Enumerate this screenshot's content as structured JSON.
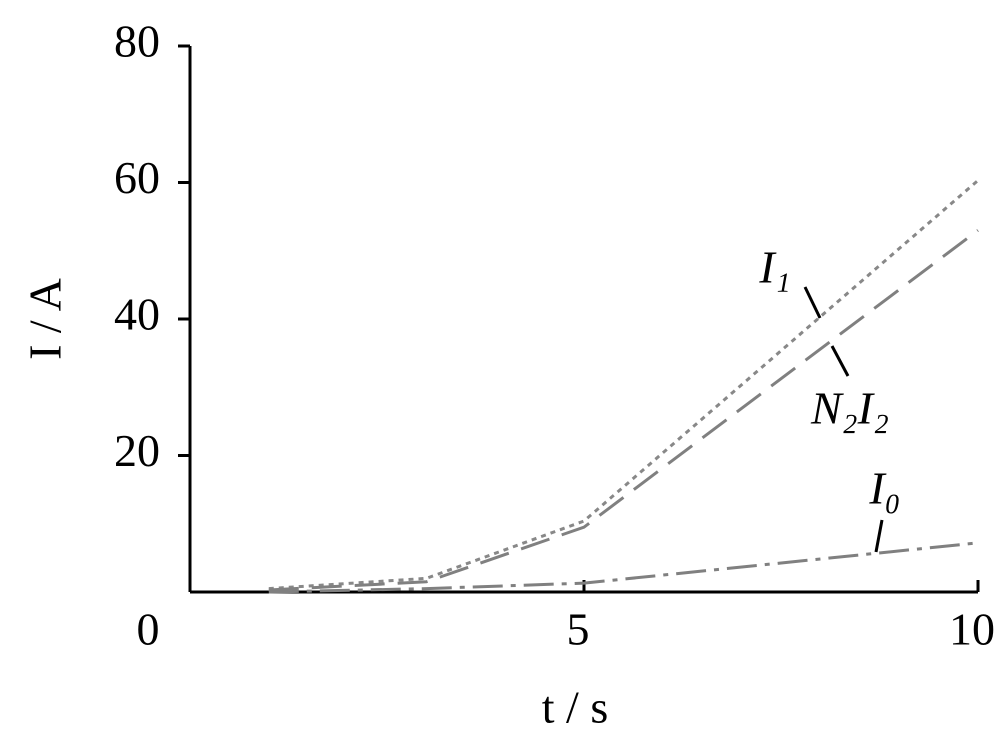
{
  "chart_data": {
    "type": "line",
    "x_label": "t / s",
    "y_label": "I / A",
    "x": [
      1,
      3,
      5,
      10
    ],
    "series": [
      {
        "name": "I₁",
        "color": "#888888",
        "values": [
          0.5,
          2,
          10.4,
          60.3
        ]
      },
      {
        "name": "N₂I₂",
        "color": "#808080",
        "values": [
          0.3,
          1.5,
          9.5,
          53
        ]
      },
      {
        "name": "I₀",
        "color": "#808080",
        "values": [
          0,
          0.5,
          1.3,
          7.2
        ]
      }
    ],
    "xlim": [
      0,
      10
    ],
    "ylim": [
      0,
      80
    ],
    "xticks": [
      0,
      5,
      10
    ],
    "yticks": [
      20,
      40,
      60,
      80
    ],
    "grid": false
  }
}
